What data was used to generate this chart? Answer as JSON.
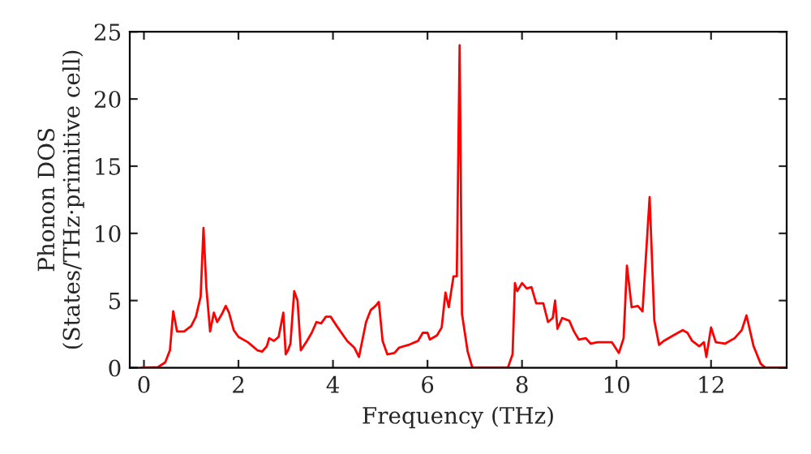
{
  "chart_data": {
    "type": "line",
    "xlabel": "Frequency (THz)",
    "ylabel": "Phonon DOS\n(States/THz·primitive cell)",
    "x": [
      -0.05,
      0.3,
      0.45,
      0.55,
      0.62,
      0.7,
      0.85,
      1.0,
      1.1,
      1.2,
      1.26,
      1.32,
      1.4,
      1.48,
      1.55,
      1.65,
      1.73,
      1.8,
      1.9,
      2.0,
      2.2,
      2.4,
      2.5,
      2.6,
      2.65,
      2.75,
      2.85,
      2.95,
      3.0,
      3.05,
      3.1,
      3.18,
      3.25,
      3.32,
      3.45,
      3.55,
      3.65,
      3.75,
      3.85,
      3.95,
      4.1,
      4.3,
      4.45,
      4.55,
      4.7,
      4.8,
      4.9,
      4.97,
      5.05,
      5.15,
      5.3,
      5.4,
      5.6,
      5.8,
      5.9,
      6.0,
      6.05,
      6.2,
      6.3,
      6.38,
      6.45,
      6.55,
      6.62,
      6.68,
      6.73,
      6.85,
      6.95,
      7.7,
      7.8,
      7.85,
      7.9,
      8.0,
      8.1,
      8.2,
      8.3,
      8.45,
      8.55,
      8.65,
      8.7,
      8.75,
      8.85,
      9.0,
      9.1,
      9.2,
      9.35,
      9.45,
      9.6,
      9.8,
      9.9,
      10.05,
      10.15,
      10.22,
      10.32,
      10.45,
      10.55,
      10.7,
      10.8,
      10.9,
      11.0,
      11.2,
      11.4,
      11.5,
      11.6,
      11.75,
      11.85,
      11.9,
      12.0,
      12.1,
      12.3,
      12.5,
      12.65,
      12.75,
      12.9,
      13.05,
      13.15,
      13.6
    ],
    "series": [
      {
        "color": "#ff0000",
        "values": [
          0,
          0.05,
          0.4,
          1.3,
          4.2,
          2.7,
          2.7,
          3.1,
          3.8,
          5.3,
          10.4,
          6.0,
          2.7,
          4.1,
          3.4,
          4.0,
          4.6,
          4.1,
          2.8,
          2.3,
          1.9,
          1.3,
          1.2,
          1.6,
          2.2,
          2.0,
          2.3,
          4.1,
          1.0,
          1.3,
          1.8,
          5.7,
          5.0,
          1.3,
          2.0,
          2.6,
          3.4,
          3.3,
          3.8,
          3.8,
          3.0,
          2.0,
          1.5,
          0.8,
          3.4,
          4.3,
          4.6,
          4.9,
          2.0,
          1.0,
          1.1,
          1.5,
          1.7,
          2.0,
          2.6,
          2.6,
          2.1,
          2.4,
          3.0,
          5.6,
          4.5,
          6.8,
          6.8,
          24.0,
          4.0,
          1.2,
          0,
          0,
          1.0,
          6.3,
          5.7,
          6.3,
          5.9,
          6.0,
          4.8,
          4.8,
          3.4,
          3.7,
          5.0,
          2.9,
          3.7,
          3.5,
          2.7,
          2.1,
          2.2,
          1.8,
          1.9,
          1.9,
          1.9,
          1.1,
          2.2,
          7.6,
          4.5,
          4.6,
          4.2,
          12.7,
          3.5,
          1.7,
          2.0,
          2.4,
          2.8,
          2.6,
          2.0,
          1.6,
          1.9,
          0.8,
          3.0,
          1.9,
          1.8,
          2.2,
          2.8,
          3.9,
          1.6,
          0.3,
          0,
          0
        ]
      }
    ],
    "xlim": [
      -0.3,
      13.6
    ],
    "ylim": [
      0,
      25
    ],
    "xticks": [
      0,
      2,
      4,
      6,
      8,
      10,
      12
    ],
    "yticks": [
      0,
      5,
      10,
      15,
      20,
      25
    ],
    "grid": false,
    "legend": false,
    "marker": "none",
    "line_style": "solid"
  }
}
